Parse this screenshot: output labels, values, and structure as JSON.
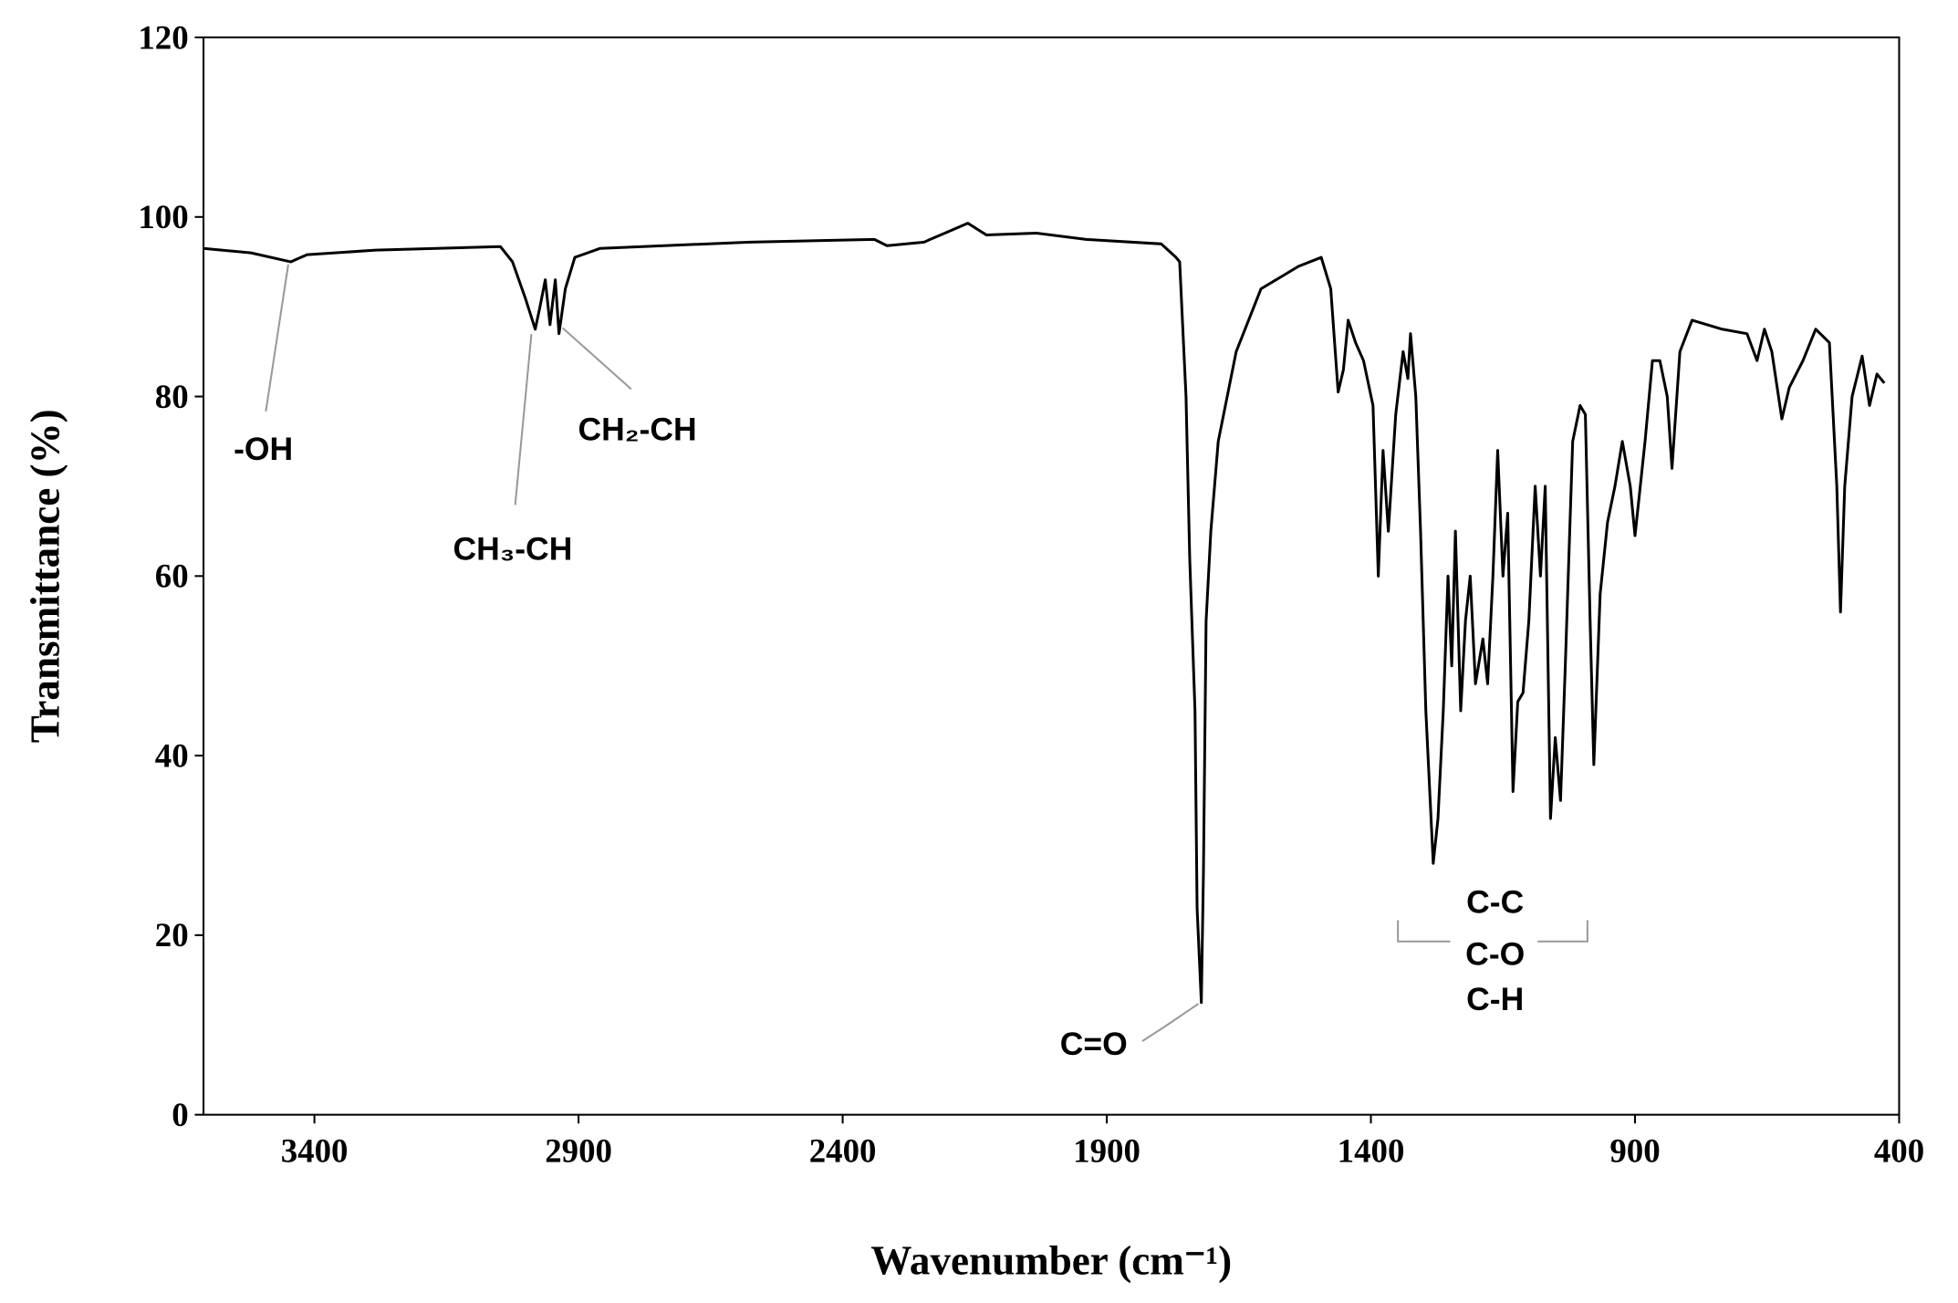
{
  "chart_data": {
    "type": "line",
    "x_label": "Wavenumber (cm⁻¹)",
    "y_label": "Transmittance (%)",
    "x": [
      3610,
      3520,
      3445,
      3414,
      3284,
      3048,
      3025,
      3001,
      2982,
      2973,
      2963,
      2954,
      2944,
      2937,
      2925,
      2907,
      2859,
      2576,
      2340,
      2316,
      2246,
      2163,
      2128,
      2033,
      1939,
      1797,
      1769,
      1762,
      1750,
      1743,
      1733,
      1729,
      1721,
      1717,
      1712,
      1703,
      1689,
      1655,
      1608,
      1537,
      1494,
      1476,
      1462,
      1452,
      1443,
      1429,
      1414,
      1396,
      1386,
      1377,
      1367,
      1353,
      1339,
      1330,
      1325,
      1315,
      1306,
      1296,
      1282,
      1273,
      1263,
      1254,
      1247,
      1240,
      1230,
      1221,
      1212,
      1202,
      1188,
      1179,
      1169,
      1160,
      1150,
      1141,
      1131,
      1122,
      1112,
      1101,
      1089,
      1079,
      1070,
      1060,
      1051,
      1041,
      1032,
      1018,
      1004,
      994,
      985,
      978,
      966,
      952,
      938,
      924,
      909,
      900,
      881,
      867,
      853,
      839,
      830,
      815,
      792,
      735,
      688,
      669,
      655,
      641,
      622,
      608,
      582,
      558,
      532,
      518,
      511,
      503,
      489,
      470,
      456,
      442,
      428
    ],
    "values": [
      96.5,
      96,
      95,
      95.8,
      96.3,
      96.7,
      95,
      91,
      87.5,
      90,
      93,
      88,
      93,
      87,
      92,
      95.5,
      96.5,
      97.2,
      97.5,
      96.8,
      97.2,
      99.3,
      98,
      98.2,
      97.5,
      97,
      95.5,
      95,
      80,
      62,
      45,
      23,
      12.5,
      27,
      55,
      65,
      75,
      85,
      92,
      94.5,
      95.5,
      92,
      80.5,
      83,
      88.5,
      86,
      84,
      79,
      60,
      74,
      65,
      78,
      85,
      82,
      87,
      80,
      65,
      45,
      28,
      33,
      45,
      60,
      50,
      65,
      45,
      55,
      60,
      48,
      53,
      48,
      60,
      74,
      60,
      67,
      36,
      46,
      47,
      55,
      70,
      60,
      70,
      33,
      42,
      35,
      50,
      75,
      79,
      78,
      55,
      39,
      58,
      66,
      70,
      75,
      70,
      64.5,
      75,
      84,
      84,
      80,
      72,
      85,
      88.5,
      87.5,
      87,
      84,
      87.5,
      85,
      77.5,
      81,
      84,
      87.5,
      86,
      70,
      56,
      70,
      80,
      84.5,
      79,
      82.5,
      81.5
    ],
    "color": "#000000",
    "xlim": [
      3610,
      400
    ],
    "xticks": [
      3400,
      2900,
      2400,
      1900,
      1400,
      900,
      400
    ],
    "ylim": [
      0,
      120
    ],
    "yticks": [
      0,
      20,
      40,
      60,
      80,
      100,
      120
    ],
    "annotations": [
      "-OH",
      "CH₃-CH",
      "CH₂-CH",
      "C=O",
      "C-C",
      "C-O",
      "C-H"
    ]
  }
}
